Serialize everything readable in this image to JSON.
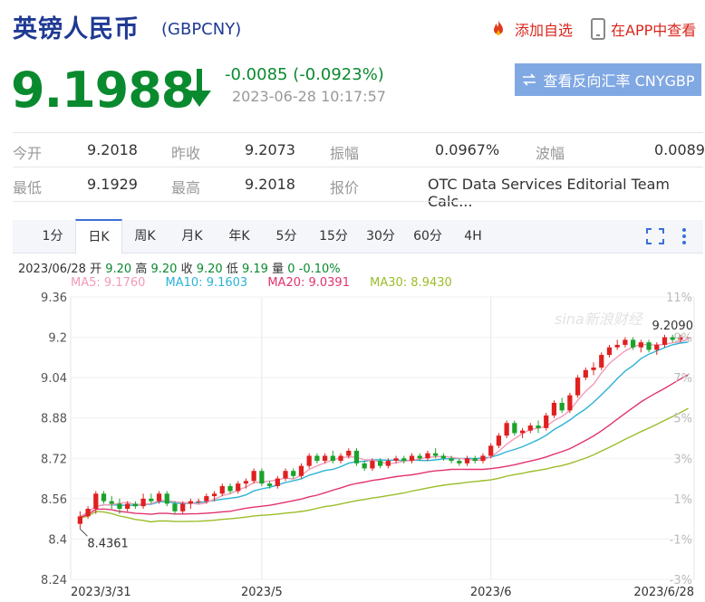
{
  "header": {
    "title": "英镑人民币",
    "code": "(GBPCNY)",
    "add_watch": "添加自选",
    "app_view": "在APP中查看"
  },
  "quote": {
    "price": "9.1988",
    "change": "-0.0085 (-0.0923%)",
    "time": "2023-06-28 10:17:57",
    "reverse_button": "查看反向汇率 CNYGBP"
  },
  "stats": {
    "row1": [
      {
        "label": "今开",
        "value": "9.2018"
      },
      {
        "label": "昨收",
        "value": "9.2073"
      },
      {
        "label": "振幅",
        "value": "0.0967%"
      },
      {
        "label": "波幅",
        "value": "0.0089"
      }
    ],
    "row2": [
      {
        "label": "最低",
        "value": "9.1929"
      },
      {
        "label": "最高",
        "value": "9.2018"
      },
      {
        "label": "报价",
        "value": "OTC Data Services Editorial Team Calc..."
      }
    ]
  },
  "tabs": [
    "1分",
    "日K",
    "周K",
    "月K",
    "年K",
    "5分",
    "15分",
    "30分",
    "60分",
    "4H"
  ],
  "active_tab": "日K",
  "ohlc": {
    "date": "2023/06/28",
    "open_label": "开",
    "open": "9.20",
    "high_label": "高",
    "high": "9.20",
    "close_label": "收",
    "close": "9.20",
    "low_label": "低",
    "low": "9.19",
    "vol_label": "量",
    "vol": "0",
    "pct": "-0.10%"
  },
  "ma": {
    "ma5": "MA5: 9.1760",
    "ma10": "MA10: 9.1603",
    "ma20": "MA20: 9.0391",
    "ma30": "MA30: 8.9430"
  },
  "colors": {
    "up": "#e02020",
    "down": "#1aa32a",
    "ma5": "#f29bb8",
    "ma10": "#2bb3d6",
    "ma20": "#e2336e",
    "ma30": "#9bbd2a",
    "brand": "#1f3a93",
    "accent": "#3a6fd8"
  },
  "chart_data": {
    "type": "candlestick",
    "ylim": [
      8.24,
      9.36
    ],
    "yticks": [
      "9.36",
      "9.2",
      "9.04",
      "8.88",
      "8.72",
      "8.56",
      "8.4",
      "8.24"
    ],
    "pct_ticks": [
      "11%",
      "9%",
      "7%",
      "5%",
      "3%",
      "1%",
      "-1%",
      "-3%"
    ],
    "xticks": [
      "2023/3/31",
      "2023/5",
      "2023/6",
      "2023/6/28"
    ],
    "annotations": {
      "high_label": "9.2090",
      "low_label": "8.4361"
    },
    "watermark": "sina新浪财经",
    "candles": [
      [
        8.46,
        8.51,
        8.44,
        8.49
      ],
      [
        8.49,
        8.53,
        8.48,
        8.52
      ],
      [
        8.52,
        8.59,
        8.5,
        8.58
      ],
      [
        8.58,
        8.59,
        8.54,
        8.55
      ],
      [
        8.55,
        8.57,
        8.52,
        8.54
      ],
      [
        8.54,
        8.56,
        8.5,
        8.52
      ],
      [
        8.52,
        8.55,
        8.51,
        8.54
      ],
      [
        8.54,
        8.55,
        8.52,
        8.53
      ],
      [
        8.53,
        8.58,
        8.52,
        8.56
      ],
      [
        8.56,
        8.58,
        8.54,
        8.55
      ],
      [
        8.55,
        8.59,
        8.54,
        8.58
      ],
      [
        8.58,
        8.59,
        8.53,
        8.54
      ],
      [
        8.54,
        8.55,
        8.5,
        8.51
      ],
      [
        8.51,
        8.55,
        8.5,
        8.54
      ],
      [
        8.54,
        8.56,
        8.52,
        8.55
      ],
      [
        8.55,
        8.56,
        8.54,
        8.55
      ],
      [
        8.55,
        8.58,
        8.54,
        8.57
      ],
      [
        8.57,
        8.59,
        8.55,
        8.58
      ],
      [
        8.58,
        8.62,
        8.57,
        8.61
      ],
      [
        8.61,
        8.62,
        8.58,
        8.59
      ],
      [
        8.59,
        8.63,
        8.58,
        8.62
      ],
      [
        8.62,
        8.64,
        8.6,
        8.63
      ],
      [
        8.63,
        8.68,
        8.62,
        8.67
      ],
      [
        8.67,
        8.68,
        8.61,
        8.62
      ],
      [
        8.62,
        8.63,
        8.6,
        8.61
      ],
      [
        8.61,
        8.65,
        8.6,
        8.64
      ],
      [
        8.64,
        8.68,
        8.63,
        8.67
      ],
      [
        8.67,
        8.68,
        8.64,
        8.65
      ],
      [
        8.65,
        8.7,
        8.64,
        8.69
      ],
      [
        8.69,
        8.74,
        8.68,
        8.73
      ],
      [
        8.73,
        8.74,
        8.7,
        8.71
      ],
      [
        8.71,
        8.74,
        8.7,
        8.73
      ],
      [
        8.73,
        8.75,
        8.7,
        8.71
      ],
      [
        8.71,
        8.74,
        8.7,
        8.73
      ],
      [
        8.73,
        8.76,
        8.72,
        8.75
      ],
      [
        8.75,
        8.76,
        8.69,
        8.7
      ],
      [
        8.7,
        8.71,
        8.67,
        8.68
      ],
      [
        8.68,
        8.72,
        8.67,
        8.71
      ],
      [
        8.71,
        8.72,
        8.68,
        8.69
      ],
      [
        8.69,
        8.72,
        8.68,
        8.71
      ],
      [
        8.71,
        8.73,
        8.7,
        8.72
      ],
      [
        8.72,
        8.73,
        8.7,
        8.71
      ],
      [
        8.71,
        8.74,
        8.7,
        8.73
      ],
      [
        8.73,
        8.74,
        8.71,
        8.72
      ],
      [
        8.72,
        8.75,
        8.71,
        8.74
      ],
      [
        8.74,
        8.76,
        8.72,
        8.73
      ],
      [
        8.73,
        8.74,
        8.71,
        8.72
      ],
      [
        8.72,
        8.73,
        8.7,
        8.71
      ],
      [
        8.71,
        8.72,
        8.69,
        8.7
      ],
      [
        8.7,
        8.73,
        8.69,
        8.72
      ],
      [
        8.72,
        8.73,
        8.7,
        8.71
      ],
      [
        8.71,
        8.74,
        8.7,
        8.73
      ],
      [
        8.73,
        8.78,
        8.72,
        8.77
      ],
      [
        8.77,
        8.82,
        8.76,
        8.81
      ],
      [
        8.81,
        8.87,
        8.8,
        8.86
      ],
      [
        8.86,
        8.87,
        8.81,
        8.82
      ],
      [
        8.82,
        8.84,
        8.8,
        8.83
      ],
      [
        8.83,
        8.86,
        8.82,
        8.85
      ],
      [
        8.85,
        8.87,
        8.82,
        8.84
      ],
      [
        8.84,
        8.9,
        8.83,
        8.89
      ],
      [
        8.89,
        8.95,
        8.88,
        8.94
      ],
      [
        8.94,
        8.96,
        8.9,
        8.91
      ],
      [
        8.91,
        8.98,
        8.9,
        8.97
      ],
      [
        8.97,
        9.05,
        8.96,
        9.04
      ],
      [
        9.04,
        9.08,
        9.03,
        9.07
      ],
      [
        9.07,
        9.1,
        9.05,
        9.08
      ],
      [
        9.08,
        9.14,
        9.07,
        9.13
      ],
      [
        9.13,
        9.17,
        9.12,
        9.16
      ],
      [
        9.16,
        9.19,
        9.15,
        9.17
      ],
      [
        9.17,
        9.2,
        9.16,
        9.19
      ],
      [
        9.19,
        9.2,
        9.15,
        9.16
      ],
      [
        9.16,
        9.19,
        9.14,
        9.18
      ],
      [
        9.18,
        9.19,
        9.14,
        9.15
      ],
      [
        9.15,
        9.18,
        9.13,
        9.17
      ],
      [
        9.17,
        9.21,
        9.16,
        9.2
      ],
      [
        9.2,
        9.21,
        9.18,
        9.19
      ],
      [
        9.19,
        9.21,
        9.18,
        9.2
      ],
      [
        9.2,
        9.2,
        9.19,
        9.2
      ]
    ]
  }
}
